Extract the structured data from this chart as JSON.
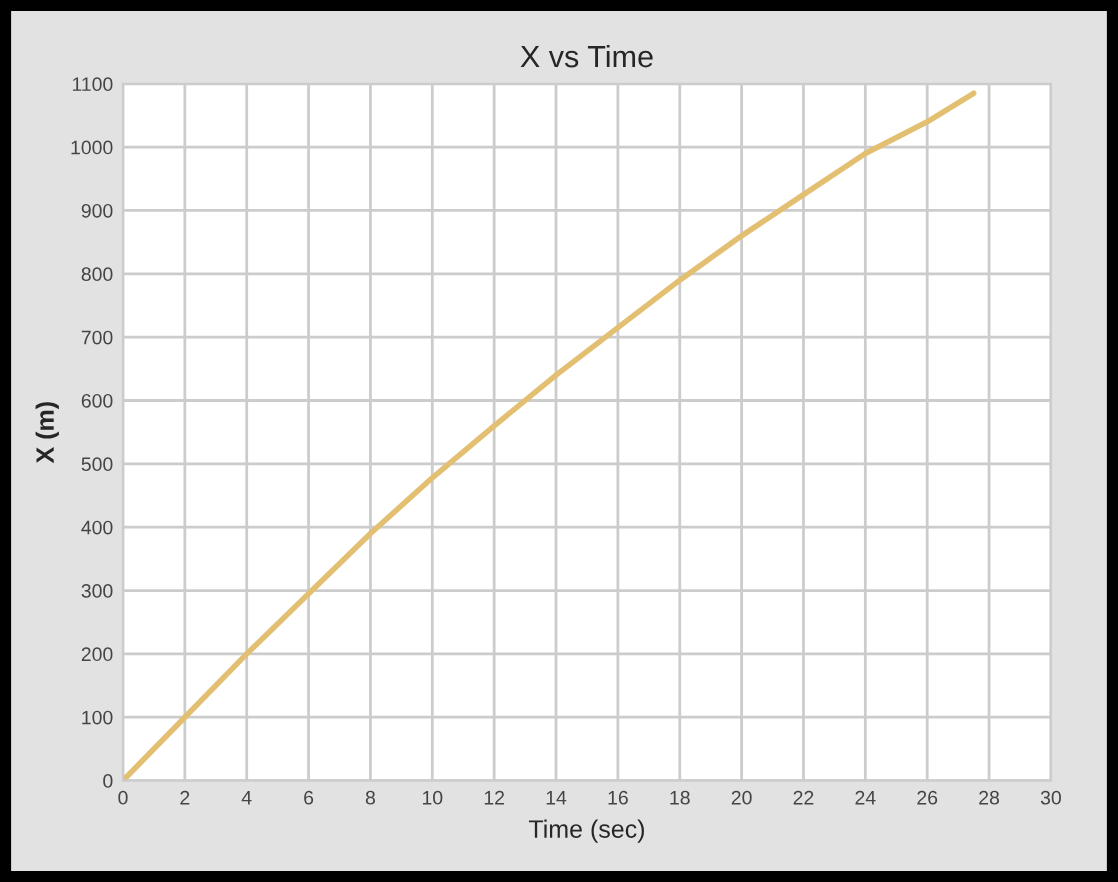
{
  "chart_data": {
    "type": "line",
    "title": "X vs Time",
    "xlabel": "Time (sec)",
    "ylabel": "X (m)",
    "series": [
      {
        "color": "#e3bf72",
        "x": [
          0,
          2,
          4,
          6,
          8,
          10,
          12,
          14,
          16,
          18,
          20,
          22,
          24,
          26,
          27.5
        ],
        "values": [
          0,
          100,
          200,
          295,
          390,
          478,
          560,
          640,
          715,
          790,
          860,
          925,
          990,
          1040,
          1085
        ]
      }
    ],
    "xlim": [
      0,
      30
    ],
    "xticks": [
      0,
      2,
      4,
      6,
      8,
      10,
      12,
      14,
      16,
      18,
      20,
      22,
      24,
      26,
      28,
      30
    ],
    "ylim": [
      0,
      1100
    ],
    "yticks": [
      0,
      100,
      200,
      300,
      400,
      500,
      600,
      700,
      800,
      900,
      1000,
      1100
    ],
    "grid": true,
    "marker": "none",
    "line_style": "solid"
  }
}
